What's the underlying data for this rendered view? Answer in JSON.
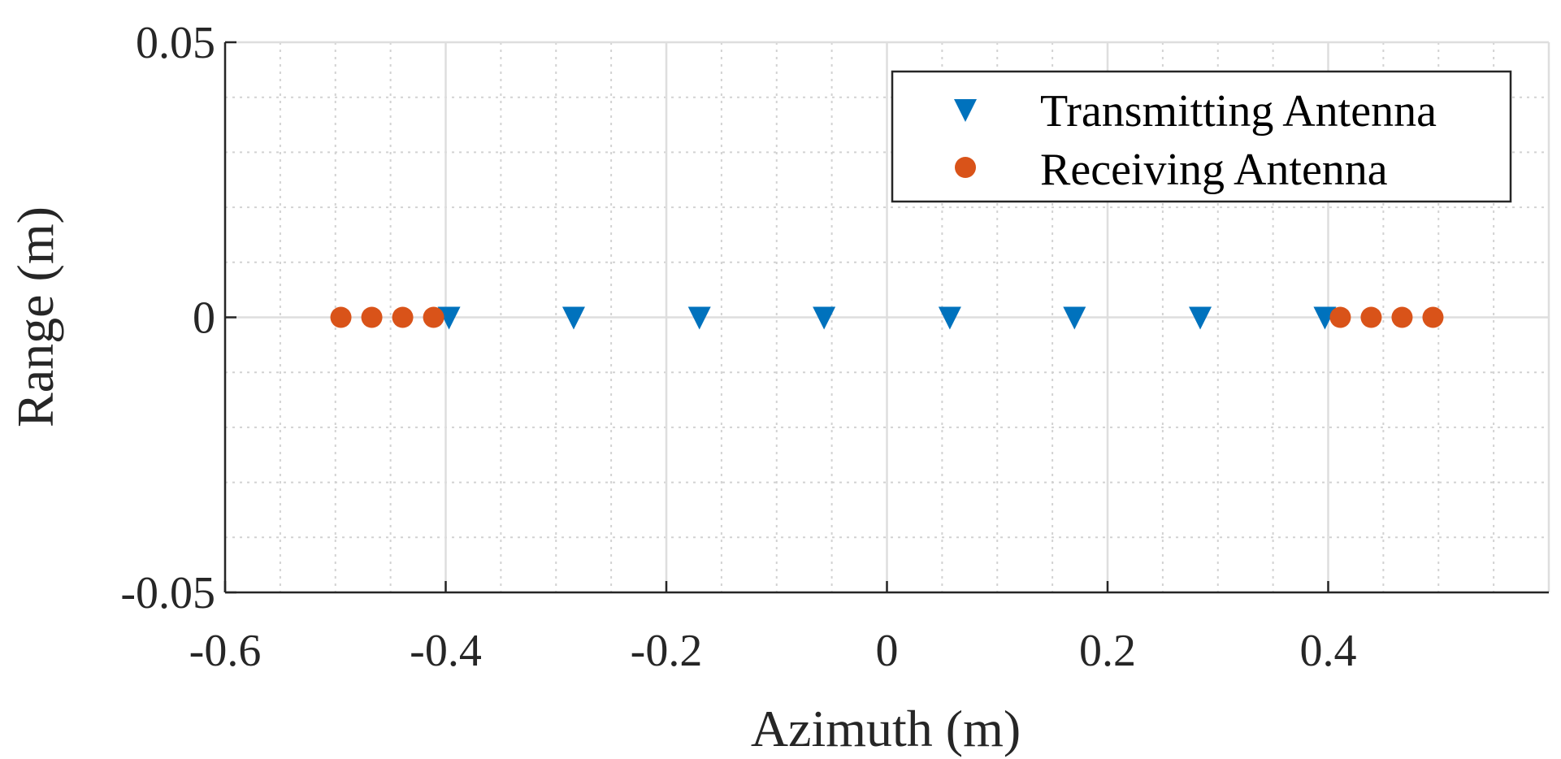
{
  "chart_data": {
    "type": "scatter",
    "title": "",
    "xlabel": "Azimuth (m)",
    "ylabel": "Range (m)",
    "xlim": [
      -0.6,
      0.6
    ],
    "ylim": [
      -0.05,
      0.05
    ],
    "xticks": [
      -0.6,
      -0.4,
      -0.2,
      0,
      0.2,
      0.4
    ],
    "xtick_labels": [
      "-0.6",
      "-0.4",
      "-0.2",
      "0",
      "0.2",
      "0.4"
    ],
    "yticks": [
      -0.05,
      0,
      0.05
    ],
    "ytick_labels": [
      "-0.05",
      "0",
      "0.05"
    ],
    "grid": true,
    "minor_grid": true,
    "legend_position": "top-right",
    "series": [
      {
        "name": "Transmitting Antenna",
        "marker": "triangle-down",
        "color": "#0072BD",
        "x": [
          -0.397,
          -0.284,
          -0.17,
          -0.057,
          0.057,
          0.17,
          0.284,
          0.397
        ],
        "y": [
          0,
          0,
          0,
          0,
          0,
          0,
          0,
          0
        ]
      },
      {
        "name": "Receiving Antenna",
        "marker": "circle",
        "color": "#D95319",
        "x": [
          -0.495,
          -0.467,
          -0.439,
          -0.411,
          0.411,
          0.439,
          0.467,
          0.495
        ],
        "y": [
          0,
          0,
          0,
          0,
          0,
          0,
          0,
          0
        ]
      }
    ]
  }
}
